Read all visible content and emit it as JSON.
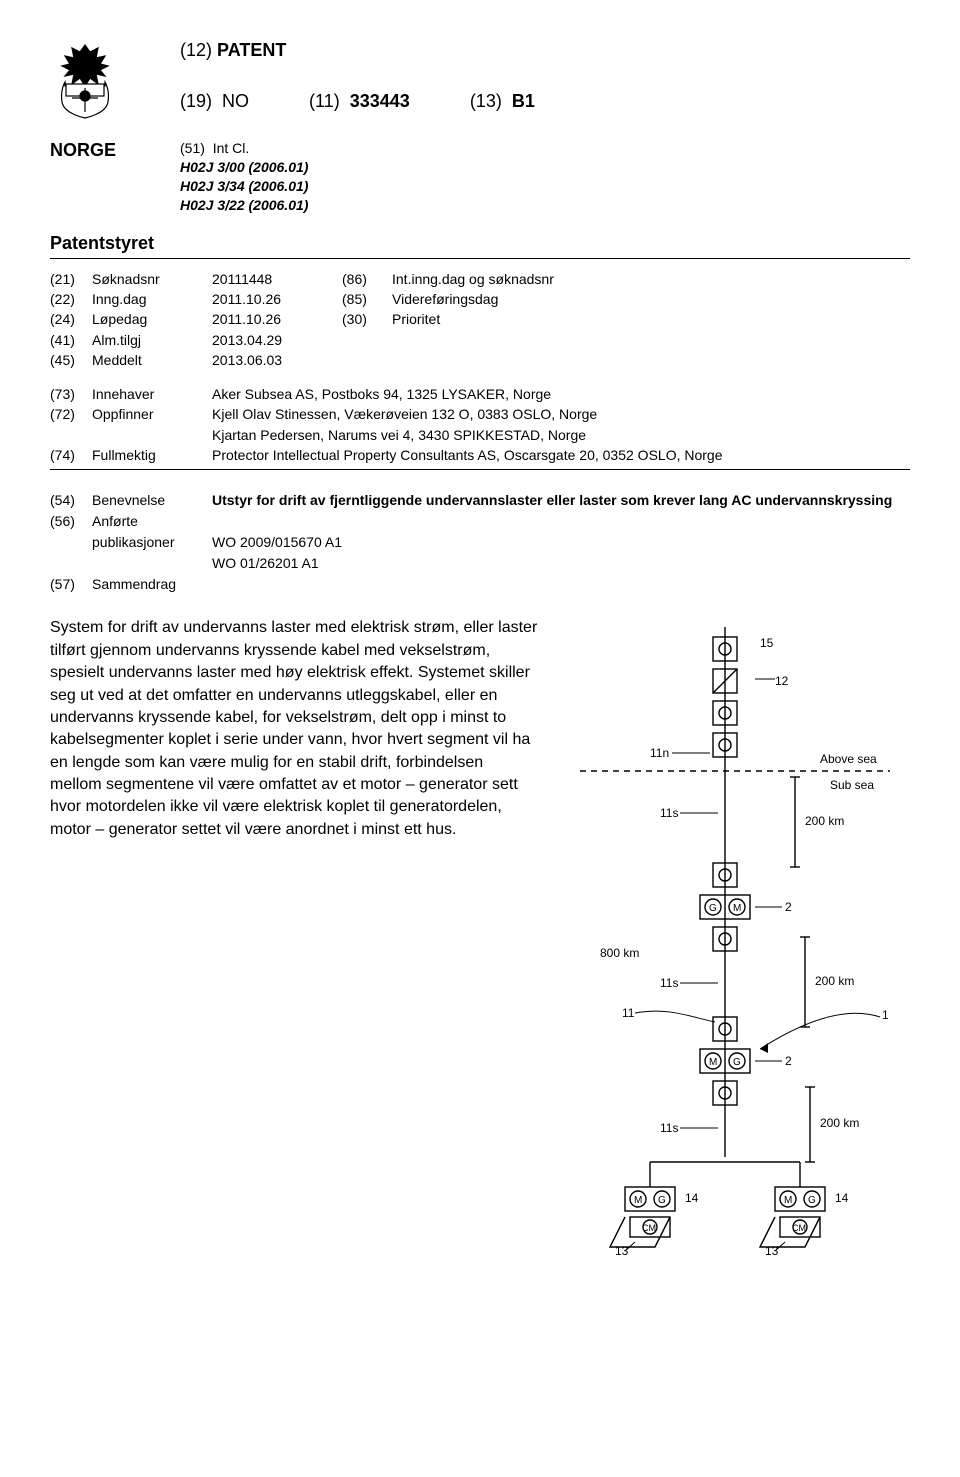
{
  "header": {
    "doc_type_code": "(12)",
    "doc_type": "PATENT",
    "country_code_field": "(19)",
    "country_code": "NO",
    "pub_num_field": "(11)",
    "pub_num": "333443",
    "kind_field": "(13)",
    "kind": "B1"
  },
  "norge": {
    "label": "NORGE",
    "intcl_field": "(51)",
    "intcl_label": "Int Cl.",
    "classes": [
      "H02J 3/00 (2006.01)",
      "H02J 3/34 (2006.01)",
      "H02J 3/22 (2006.01)"
    ]
  },
  "office": "Patentstyret",
  "biblio": {
    "rows": [
      {
        "f1": "(21)",
        "l1": "Søknadsnr",
        "v1": "20111448",
        "f2": "(86)",
        "l2": "Int.inng.dag og søknadsnr"
      },
      {
        "f1": "(22)",
        "l1": "Inng.dag",
        "v1": "2011.10.26",
        "f2": "(85)",
        "l2": "Videreføringsdag"
      },
      {
        "f1": "(24)",
        "l1": "Løpedag",
        "v1": "2011.10.26",
        "f2": "(30)",
        "l2": "Prioritet"
      },
      {
        "f1": "(41)",
        "l1": "Alm.tilgj",
        "v1": "2013.04.29",
        "f2": "",
        "l2": ""
      },
      {
        "f1": "(45)",
        "l1": "Meddelt",
        "v1": "2013.06.03",
        "f2": "",
        "l2": ""
      }
    ],
    "parties": [
      {
        "f": "(73)",
        "l": "Innehaver",
        "v": "Aker Subsea AS, Postboks 94, 1325 LYSAKER, Norge"
      },
      {
        "f": "(72)",
        "l": "Oppfinner",
        "v": "Kjell Olav Stinessen, Vækerøveien 132 O, 0383 OSLO, Norge"
      },
      {
        "f": "",
        "l": "",
        "v": "Kjartan Pedersen, Narums vei 4, 3430 SPIKKESTAD, Norge"
      },
      {
        "f": "(74)",
        "l": "Fullmektig",
        "v": "Protector Intellectual Property Consultants AS, Oscarsgate 20, 0352 OSLO, Norge"
      }
    ],
    "title_block": [
      {
        "f": "(54)",
        "l": "Benevnelse",
        "v": "Utstyr for drift av fjerntliggende undervannslaster eller laster som krever lang AC undervannskryssing",
        "bold": true
      },
      {
        "f": "(56)",
        "l": "Anførte",
        "v": ""
      },
      {
        "f": "",
        "l": "publikasjoner",
        "v": "WO 2009/015670 A1"
      },
      {
        "f": "",
        "l": "",
        "v": "WO 01/26201 A1"
      },
      {
        "f": "(57)",
        "l": "Sammendrag",
        "v": ""
      }
    ]
  },
  "abstract": "System for drift av undervanns laster med elektrisk strøm, eller laster tilført gjennom undervanns kryssende kabel med vekselstrøm, spesielt undervanns laster med høy elektrisk effekt. Systemet skiller seg ut ved at det omfatter en undervanns utleggskabel, eller en undervanns kryssende kabel, for vekselstrøm, delt opp i minst to kabelsegmenter koplet i serie under vann, hvor hvert segment vil ha en lengde som kan være mulig for en stabil drift, forbindelsen mellom segmentene vil være omfattet av et motor – generator sett hvor motordelen ikke vil være elektrisk koplet til generatordelen, motor – generator settet vil være anordnet i minst ett hus.",
  "figure": {
    "labels": {
      "above": "Above sea",
      "sub": "Sub sea",
      "800km": "800 km",
      "200km": "200 km"
    },
    "refs": [
      "15",
      "12",
      "11n",
      "11s",
      "11",
      "2",
      "14",
      "13",
      "1"
    ],
    "colors": {
      "stroke": "#000000",
      "background": "#ffffff"
    }
  }
}
